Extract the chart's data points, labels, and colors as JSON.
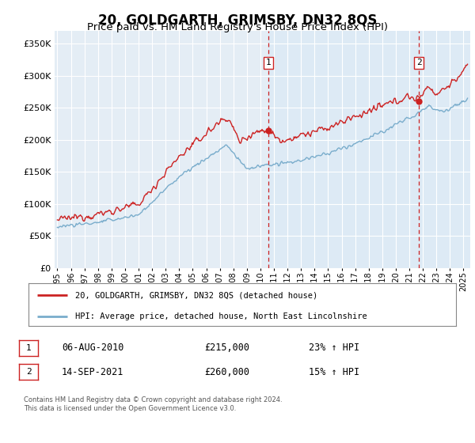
{
  "title": "20, GOLDGARTH, GRIMSBY, DN32 8QS",
  "subtitle": "Price paid vs. HM Land Registry's House Price Index (HPI)",
  "ylim": [
    0,
    370000
  ],
  "yticks": [
    0,
    50000,
    100000,
    150000,
    200000,
    250000,
    300000,
    350000
  ],
  "x_start_year": 1995,
  "x_end_year": 2025,
  "sale1_date": 2010.58,
  "sale1_price": 215000,
  "sale2_date": 2021.71,
  "sale2_price": 260000,
  "red_line_color": "#cc2222",
  "blue_line_color": "#7aadcc",
  "background_color": "#dce8f0",
  "background_color2": "#e4edf5",
  "grid_color": "#ffffff",
  "legend_line1": "20, GOLDGARTH, GRIMSBY, DN32 8QS (detached house)",
  "legend_line2": "HPI: Average price, detached house, North East Lincolnshire",
  "ann1_date": "06-AUG-2010",
  "ann1_price": "£215,000",
  "ann1_pct": "23% ↑ HPI",
  "ann2_date": "14-SEP-2021",
  "ann2_price": "£260,000",
  "ann2_pct": "15% ↑ HPI",
  "footnote": "Contains HM Land Registry data © Crown copyright and database right 2024.\nThis data is licensed under the Open Government Licence v3.0."
}
